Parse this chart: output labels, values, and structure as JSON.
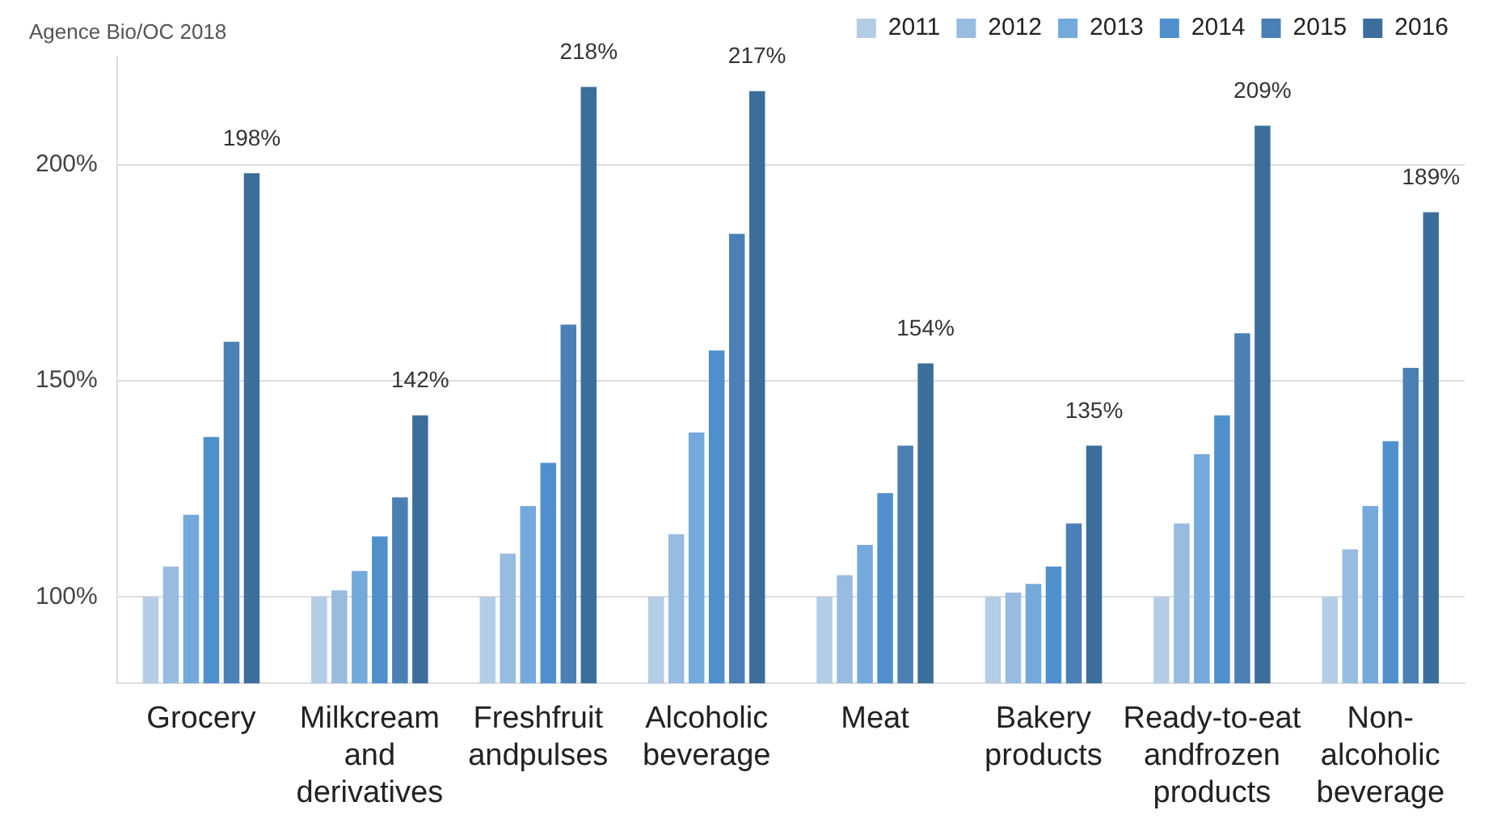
{
  "chart_data": {
    "type": "bar",
    "annotations": [
      "Agence Bio/OC 2018"
    ],
    "categories": [
      "Grocery",
      "Milkcream\nand\nderivatives",
      "Freshfruit\nandpulses",
      "Alcoholic\nbeverage",
      "Meat",
      "Bakery\nproducts",
      "Ready-to-eat\nandfrozen\nproducts",
      "Non-\nalcoholic\nbeverage"
    ],
    "series": [
      {
        "name": "2011",
        "color": "#b4cde6",
        "values": [
          100,
          100,
          100,
          100,
          100,
          100,
          100,
          100
        ]
      },
      {
        "name": "2012",
        "color": "#97bce0",
        "values": [
          107,
          101.5,
          110,
          114.5,
          105,
          101,
          117,
          111
        ]
      },
      {
        "name": "2013",
        "color": "#74a9db",
        "values": [
          119,
          106,
          121,
          138,
          112,
          103,
          133,
          121
        ]
      },
      {
        "name": "2014",
        "color": "#4f90cc",
        "values": [
          137,
          114,
          131,
          157,
          124,
          107,
          142,
          136
        ]
      },
      {
        "name": "2015",
        "color": "#4a80b5",
        "values": [
          159,
          123,
          163,
          184,
          135,
          117,
          161,
          153
        ]
      },
      {
        "name": "2016",
        "color": "#3c6e9c",
        "values": [
          198,
          142,
          218,
          217,
          154,
          135,
          209,
          189
        ],
        "value_labels": [
          "198%",
          "142%",
          "218%",
          "217%",
          "154%",
          "135%",
          "209%",
          "189%"
        ]
      }
    ],
    "ylim": [
      80,
      225
    ],
    "yticks": [
      {
        "value": 100,
        "label": "100%"
      },
      {
        "value": 150,
        "label": "150%"
      },
      {
        "value": 200,
        "label": "200%"
      }
    ],
    "grid": "y",
    "legend": "top right"
  }
}
